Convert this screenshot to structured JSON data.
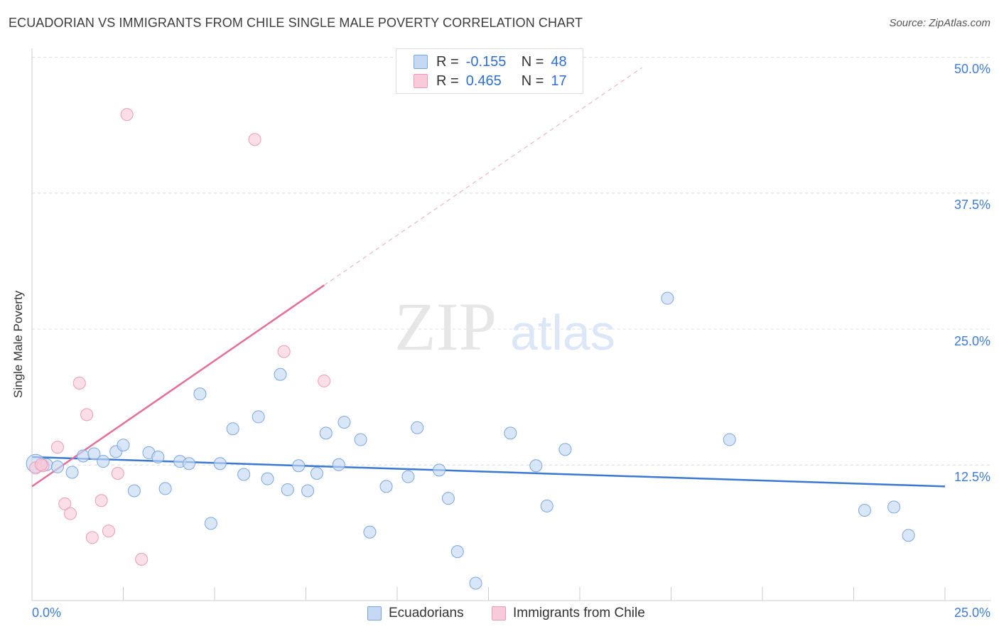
{
  "title": "ECUADORIAN VS IMMIGRANTS FROM CHILE SINGLE MALE POVERTY CORRELATION CHART",
  "source": "Source: ZipAtlas.com",
  "watermark": {
    "zip": "ZIP",
    "atlas": "atlas"
  },
  "legend": {
    "r_label": "R =",
    "n_label": "N =",
    "rows": [
      {
        "r": "-0.155",
        "n": "48",
        "fill": "#c5d9f5",
        "stroke": "#7aa6e0"
      },
      {
        "r": "0.465",
        "n": "17",
        "fill": "#f9cad9",
        "stroke": "#ee9ab6"
      }
    ]
  },
  "bottom_legend": [
    "Ecuadorians",
    "Immigrants from Chile"
  ],
  "y_ticks": [
    "50.0%",
    "37.5%",
    "25.0%",
    "12.5%"
  ],
  "x_ticks": [
    "0.0%",
    "25.0%"
  ],
  "chart_data": {
    "type": "scatter",
    "title": "ECUADORIAN VS IMMIGRANTS FROM CHILE SINGLE MALE POVERTY CORRELATION CHART",
    "xlabel": "",
    "ylabel": "Single Male Poverty",
    "xlim": [
      0,
      25
    ],
    "ylim": [
      0,
      50
    ],
    "grid": true,
    "legend_position": "top-center",
    "colors": {
      "Ecuadorians": "#3a78d4",
      "Immigrants from Chile": "#e36f9a"
    },
    "series": [
      {
        "name": "Ecuadorians",
        "r": -0.155,
        "n": 48,
        "points": [
          [
            0.1,
            12.6
          ],
          [
            0.4,
            12.5
          ],
          [
            0.7,
            12.3
          ],
          [
            1.1,
            11.8
          ],
          [
            1.4,
            13.3
          ],
          [
            1.7,
            13.5
          ],
          [
            1.95,
            12.8
          ],
          [
            2.3,
            13.7
          ],
          [
            2.5,
            14.3
          ],
          [
            2.8,
            10.1
          ],
          [
            3.2,
            13.6
          ],
          [
            3.45,
            13.2
          ],
          [
            3.65,
            10.3
          ],
          [
            4.05,
            12.8
          ],
          [
            4.3,
            12.6
          ],
          [
            4.6,
            19.0
          ],
          [
            4.9,
            7.1
          ],
          [
            5.15,
            12.6
          ],
          [
            5.5,
            15.8
          ],
          [
            5.8,
            11.6
          ],
          [
            6.2,
            16.9
          ],
          [
            6.45,
            11.2
          ],
          [
            6.8,
            20.8
          ],
          [
            7.0,
            10.2
          ],
          [
            7.3,
            12.4
          ],
          [
            7.55,
            10.1
          ],
          [
            7.8,
            11.7
          ],
          [
            8.05,
            15.4
          ],
          [
            8.4,
            12.5
          ],
          [
            8.55,
            16.4
          ],
          [
            9.0,
            14.8
          ],
          [
            9.25,
            6.3
          ],
          [
            9.7,
            10.5
          ],
          [
            10.3,
            11.4
          ],
          [
            10.55,
            15.9
          ],
          [
            11.15,
            12.0
          ],
          [
            11.4,
            9.4
          ],
          [
            11.65,
            4.5
          ],
          [
            12.15,
            1.6
          ],
          [
            13.1,
            15.4
          ],
          [
            13.8,
            12.4
          ],
          [
            14.1,
            8.7
          ],
          [
            14.6,
            13.9
          ],
          [
            17.4,
            27.8
          ],
          [
            19.1,
            14.8
          ],
          [
            22.8,
            8.3
          ],
          [
            23.6,
            8.6
          ],
          [
            24.0,
            6.0
          ]
        ],
        "trend": {
          "x": [
            0,
            25
          ],
          "y": [
            13.2,
            10.5
          ]
        }
      },
      {
        "name": "Immigrants from Chile",
        "r": 0.465,
        "n": 17,
        "points": [
          [
            0.1,
            12.2
          ],
          [
            0.3,
            12.4
          ],
          [
            0.7,
            14.1
          ],
          [
            0.9,
            8.9
          ],
          [
            1.05,
            8.0
          ],
          [
            1.3,
            20.0
          ],
          [
            1.5,
            17.1
          ],
          [
            1.65,
            5.8
          ],
          [
            1.9,
            9.2
          ],
          [
            2.1,
            6.4
          ],
          [
            2.35,
            11.7
          ],
          [
            2.6,
            44.7
          ],
          [
            3.0,
            3.8
          ],
          [
            6.1,
            42.4
          ],
          [
            6.9,
            22.9
          ],
          [
            8.0,
            20.2
          ],
          [
            0.25,
            12.5
          ]
        ],
        "trend": {
          "x": [
            0,
            8.0
          ],
          "y": [
            10.5,
            29.0
          ],
          "dashed_to": {
            "x": 16.7,
            "y": 49.0
          }
        }
      }
    ]
  }
}
